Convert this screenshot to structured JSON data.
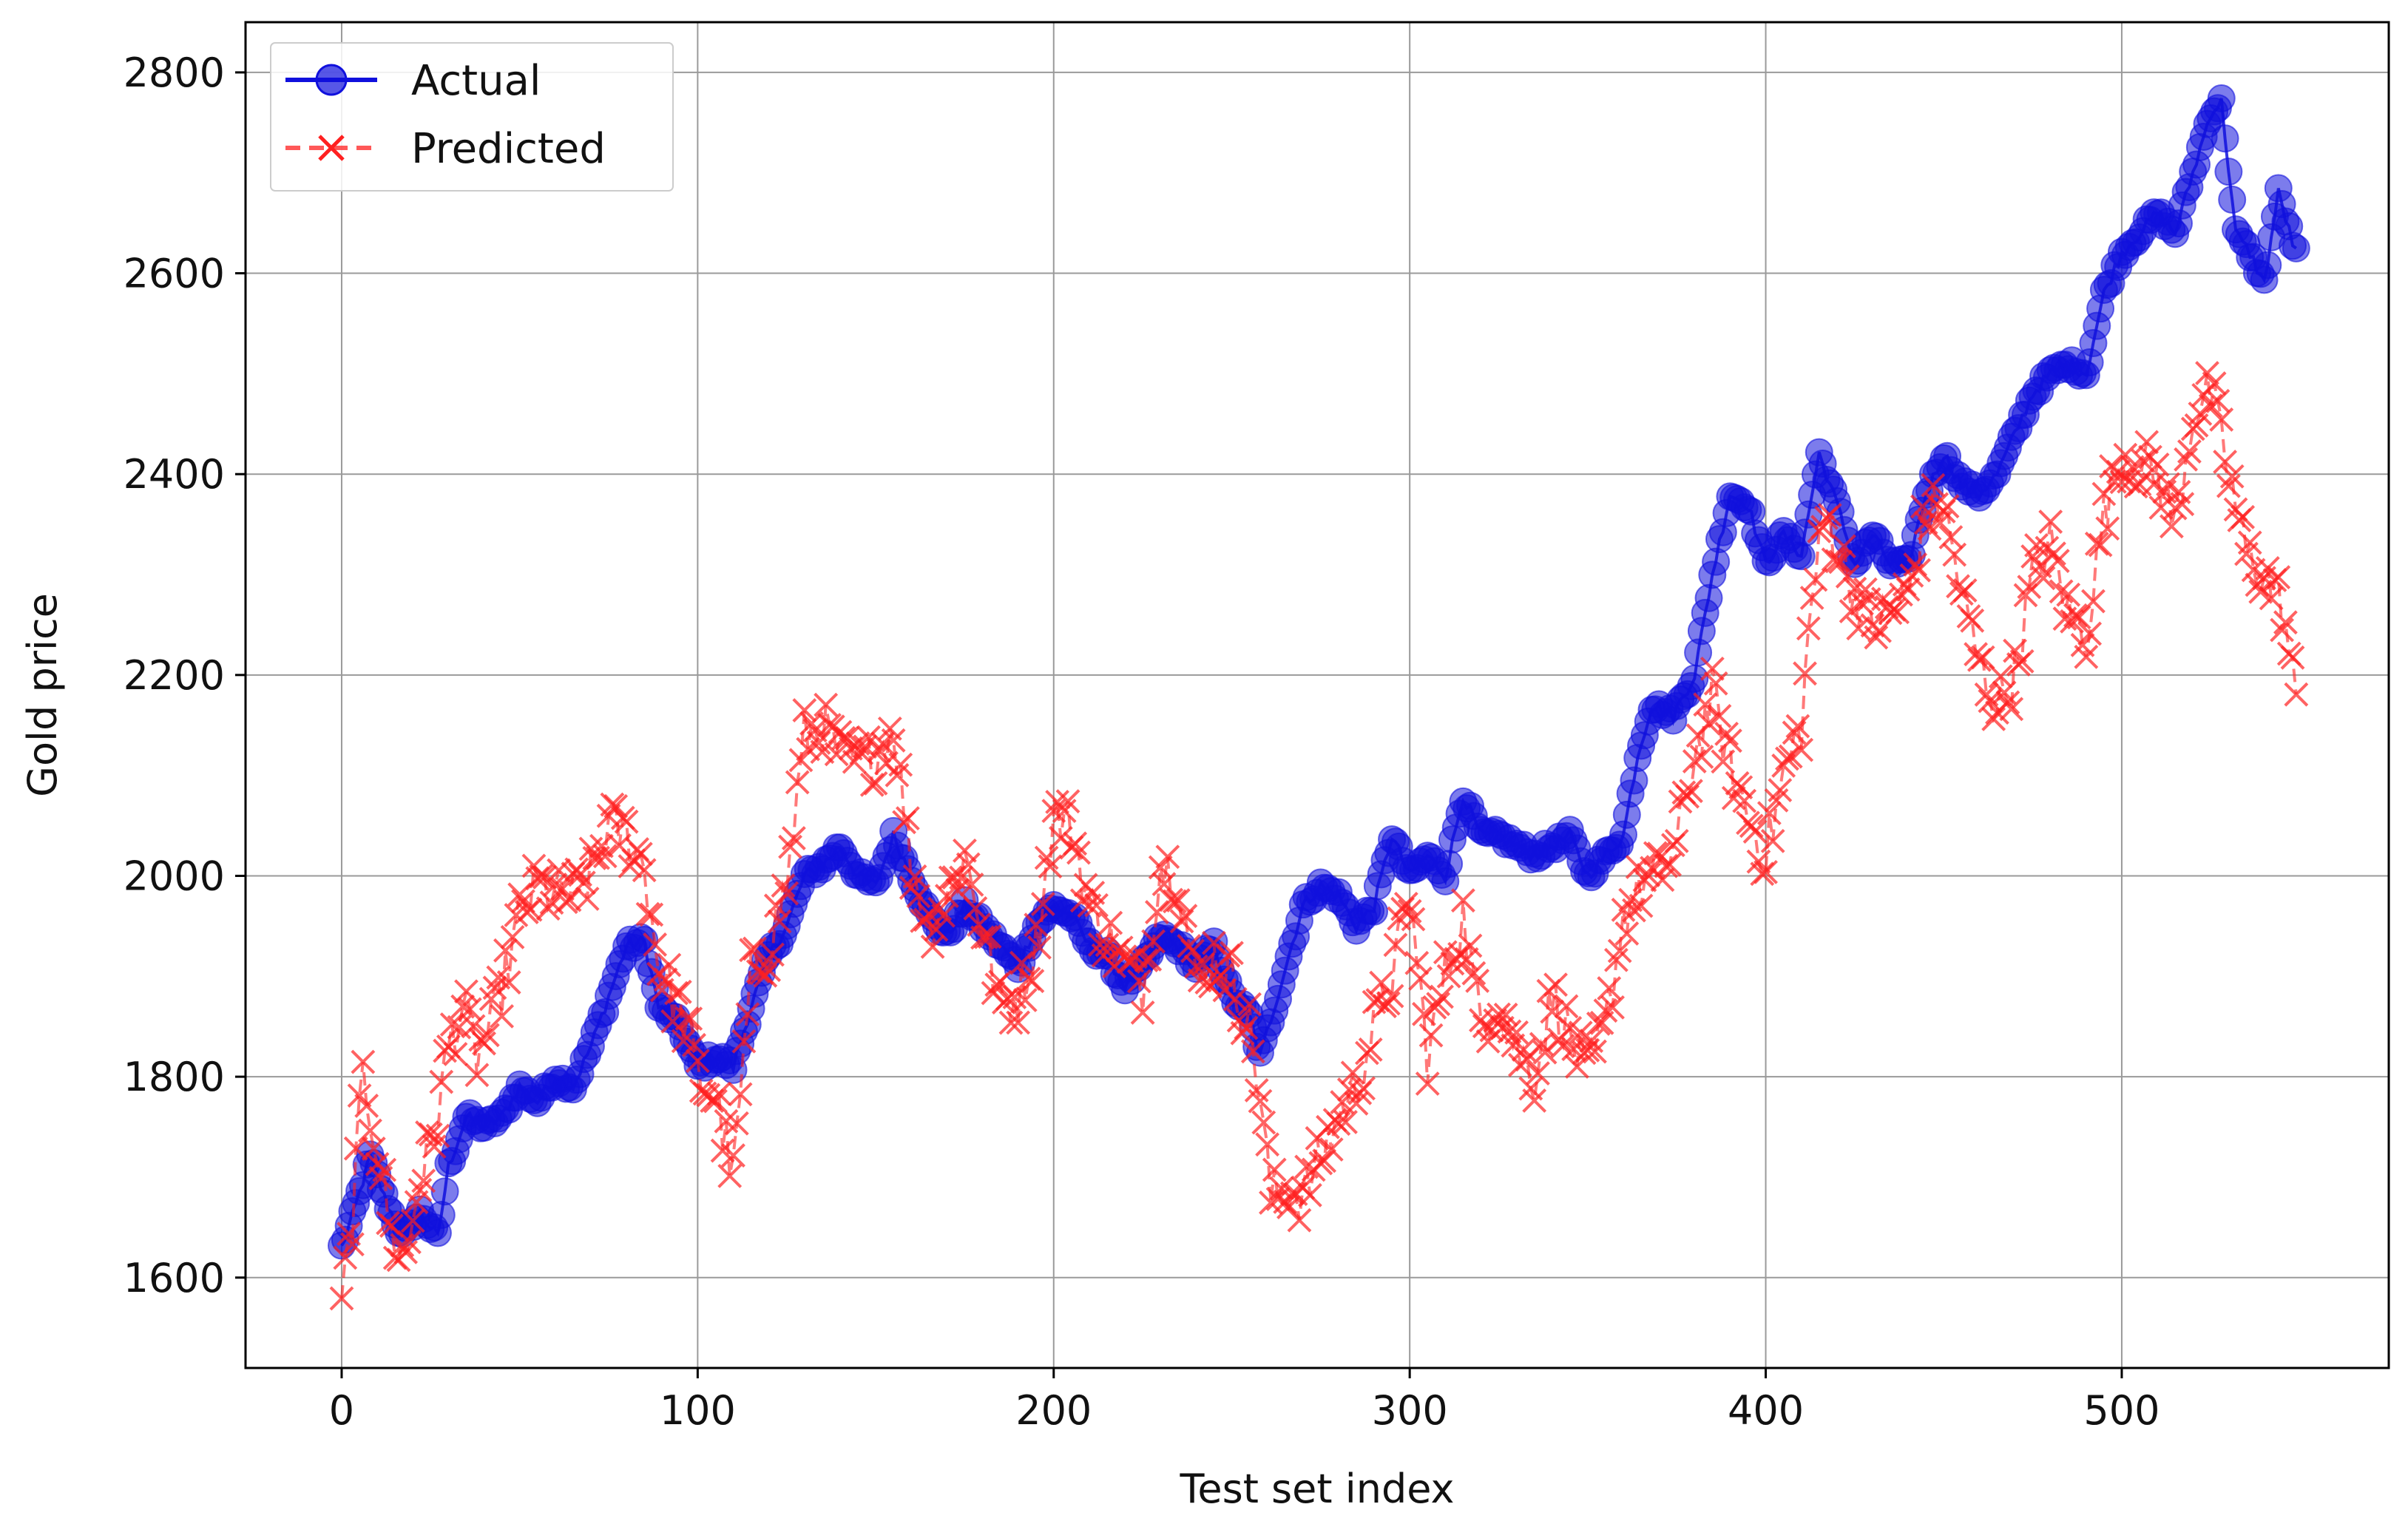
{
  "chart_data": {
    "type": "line",
    "title": "",
    "xlabel": "Test set index",
    "ylabel": "Gold price",
    "xlim": [
      -27,
      575
    ],
    "ylim": [
      1510,
      2850
    ],
    "xticks": [
      0,
      100,
      200,
      300,
      400,
      500
    ],
    "yticks": [
      1600,
      1800,
      2000,
      2200,
      2400,
      2600,
      2800
    ],
    "grid": true,
    "legend_position": "top-left",
    "x": {
      "start": 0,
      "end": 549,
      "step": 1
    },
    "series": [
      {
        "name": "Actual",
        "color": "#1010dd",
        "line_style": "solid",
        "marker": "circle",
        "anchors": [
          [
            0,
            1630
          ],
          [
            3,
            1660
          ],
          [
            8,
            1720
          ],
          [
            12,
            1680
          ],
          [
            17,
            1640
          ],
          [
            22,
            1665
          ],
          [
            27,
            1640
          ],
          [
            30,
            1710
          ],
          [
            35,
            1760
          ],
          [
            40,
            1750
          ],
          [
            45,
            1760
          ],
          [
            50,
            1790
          ],
          [
            55,
            1775
          ],
          [
            60,
            1800
          ],
          [
            65,
            1790
          ],
          [
            70,
            1830
          ],
          [
            75,
            1880
          ],
          [
            80,
            1930
          ],
          [
            85,
            1935
          ],
          [
            89,
            1870
          ],
          [
            95,
            1850
          ],
          [
            100,
            1810
          ],
          [
            105,
            1820
          ],
          [
            110,
            1810
          ],
          [
            115,
            1870
          ],
          [
            120,
            1920
          ],
          [
            125,
            1950
          ],
          [
            130,
            2000
          ],
          [
            135,
            2010
          ],
          [
            140,
            2030
          ],
          [
            145,
            2000
          ],
          [
            150,
            1990
          ],
          [
            155,
            2040
          ],
          [
            160,
            2000
          ],
          [
            165,
            1960
          ],
          [
            170,
            1940
          ],
          [
            175,
            1970
          ],
          [
            180,
            1950
          ],
          [
            185,
            1930
          ],
          [
            190,
            1910
          ],
          [
            195,
            1950
          ],
          [
            200,
            1970
          ],
          [
            205,
            1960
          ],
          [
            210,
            1930
          ],
          [
            215,
            1920
          ],
          [
            220,
            1890
          ],
          [
            225,
            1910
          ],
          [
            230,
            1940
          ],
          [
            235,
            1930
          ],
          [
            240,
            1910
          ],
          [
            245,
            1930
          ],
          [
            250,
            1880
          ],
          [
            255,
            1860
          ],
          [
            258,
            1820
          ],
          [
            262,
            1870
          ],
          [
            266,
            1920
          ],
          [
            270,
            1970
          ],
          [
            275,
            1990
          ],
          [
            280,
            1980
          ],
          [
            285,
            1950
          ],
          [
            290,
            1970
          ],
          [
            295,
            2040
          ],
          [
            300,
            2000
          ],
          [
            305,
            2020
          ],
          [
            310,
            2000
          ],
          [
            315,
            2080
          ],
          [
            320,
            2040
          ],
          [
            325,
            2040
          ],
          [
            330,
            2030
          ],
          [
            335,
            2020
          ],
          [
            340,
            2030
          ],
          [
            345,
            2040
          ],
          [
            350,
            2000
          ],
          [
            355,
            2020
          ],
          [
            360,
            2040
          ],
          [
            364,
            2120
          ],
          [
            368,
            2170
          ],
          [
            374,
            2160
          ],
          [
            380,
            2200
          ],
          [
            385,
            2300
          ],
          [
            390,
            2380
          ],
          [
            395,
            2370
          ],
          [
            400,
            2310
          ],
          [
            405,
            2340
          ],
          [
            410,
            2320
          ],
          [
            415,
            2420
          ],
          [
            420,
            2370
          ],
          [
            425,
            2310
          ],
          [
            430,
            2340
          ],
          [
            435,
            2310
          ],
          [
            440,
            2310
          ],
          [
            445,
            2380
          ],
          [
            450,
            2420
          ],
          [
            455,
            2390
          ],
          [
            460,
            2380
          ],
          [
            465,
            2400
          ],
          [
            470,
            2440
          ],
          [
            475,
            2480
          ],
          [
            480,
            2500
          ],
          [
            485,
            2510
          ],
          [
            490,
            2500
          ],
          [
            495,
            2580
          ],
          [
            500,
            2620
          ],
          [
            505,
            2640
          ],
          [
            510,
            2660
          ],
          [
            515,
            2640
          ],
          [
            520,
            2700
          ],
          [
            525,
            2760
          ],
          [
            528,
            2770
          ],
          [
            532,
            2640
          ],
          [
            536,
            2620
          ],
          [
            540,
            2590
          ],
          [
            544,
            2680
          ],
          [
            548,
            2630
          ],
          [
            549,
            2620
          ]
        ]
      },
      {
        "name": "Predicted",
        "color": "#ff2020",
        "line_style": "dashed",
        "marker": "x",
        "anchors": [
          [
            0,
            1570
          ],
          [
            3,
            1660
          ],
          [
            6,
            1800
          ],
          [
            10,
            1730
          ],
          [
            14,
            1640
          ],
          [
            18,
            1620
          ],
          [
            22,
            1700
          ],
          [
            26,
            1740
          ],
          [
            30,
            1830
          ],
          [
            34,
            1870
          ],
          [
            38,
            1820
          ],
          [
            42,
            1850
          ],
          [
            46,
            1900
          ],
          [
            50,
            1960
          ],
          [
            55,
            1990
          ],
          [
            60,
            1980
          ],
          [
            65,
            1980
          ],
          [
            70,
            2000
          ],
          [
            75,
            2050
          ],
          [
            80,
            2040
          ],
          [
            85,
            2010
          ],
          [
            89,
            1910
          ],
          [
            93,
            1880
          ],
          [
            97,
            1850
          ],
          [
            100,
            1800
          ],
          [
            105,
            1780
          ],
          [
            110,
            1700
          ],
          [
            115,
            1900
          ],
          [
            120,
            1930
          ],
          [
            125,
            1990
          ],
          [
            130,
            2140
          ],
          [
            135,
            2150
          ],
          [
            140,
            2120
          ],
          [
            145,
            2110
          ],
          [
            150,
            2120
          ],
          [
            155,
            2150
          ],
          [
            160,
            2010
          ],
          [
            165,
            1950
          ],
          [
            170,
            1980
          ],
          [
            175,
            2020
          ],
          [
            180,
            1950
          ],
          [
            185,
            1870
          ],
          [
            190,
            1880
          ],
          [
            195,
            1930
          ],
          [
            200,
            2060
          ],
          [
            205,
            2050
          ],
          [
            210,
            1970
          ],
          [
            215,
            1940
          ],
          [
            220,
            1910
          ],
          [
            225,
            1890
          ],
          [
            230,
            2010
          ],
          [
            235,
            2000
          ],
          [
            240,
            1890
          ],
          [
            245,
            1920
          ],
          [
            250,
            1900
          ],
          [
            255,
            1850
          ],
          [
            258,
            1780
          ],
          [
            261,
            1680
          ],
          [
            266,
            1690
          ],
          [
            270,
            1680
          ],
          [
            275,
            1720
          ],
          [
            280,
            1760
          ],
          [
            285,
            1790
          ],
          [
            290,
            1850
          ],
          [
            295,
            1900
          ],
          [
            300,
            1980
          ],
          [
            305,
            1820
          ],
          [
            310,
            1900
          ],
          [
            315,
            1960
          ],
          [
            320,
            1850
          ],
          [
            325,
            1880
          ],
          [
            330,
            1830
          ],
          [
            335,
            1800
          ],
          [
            340,
            1880
          ],
          [
            345,
            1840
          ],
          [
            350,
            1800
          ],
          [
            355,
            1850
          ],
          [
            360,
            1960
          ],
          [
            365,
            1990
          ],
          [
            370,
            2000
          ],
          [
            375,
            2030
          ],
          [
            380,
            2120
          ],
          [
            385,
            2180
          ],
          [
            390,
            2110
          ],
          [
            395,
            2060
          ],
          [
            400,
            2020
          ],
          [
            405,
            2100
          ],
          [
            410,
            2150
          ],
          [
            413,
            2280
          ],
          [
            417,
            2360
          ],
          [
            421,
            2320
          ],
          [
            425,
            2280
          ],
          [
            430,
            2250
          ],
          [
            435,
            2260
          ],
          [
            440,
            2280
          ],
          [
            445,
            2360
          ],
          [
            450,
            2370
          ],
          [
            455,
            2280
          ],
          [
            460,
            2210
          ],
          [
            465,
            2170
          ],
          [
            470,
            2200
          ],
          [
            475,
            2300
          ],
          [
            480,
            2330
          ],
          [
            485,
            2260
          ],
          [
            490,
            2240
          ],
          [
            495,
            2360
          ],
          [
            500,
            2420
          ],
          [
            505,
            2410
          ],
          [
            510,
            2400
          ],
          [
            515,
            2350
          ],
          [
            520,
            2460
          ],
          [
            525,
            2480
          ],
          [
            530,
            2400
          ],
          [
            535,
            2320
          ],
          [
            540,
            2300
          ],
          [
            545,
            2270
          ],
          [
            548,
            2200
          ],
          [
            549,
            2160
          ]
        ]
      }
    ]
  }
}
